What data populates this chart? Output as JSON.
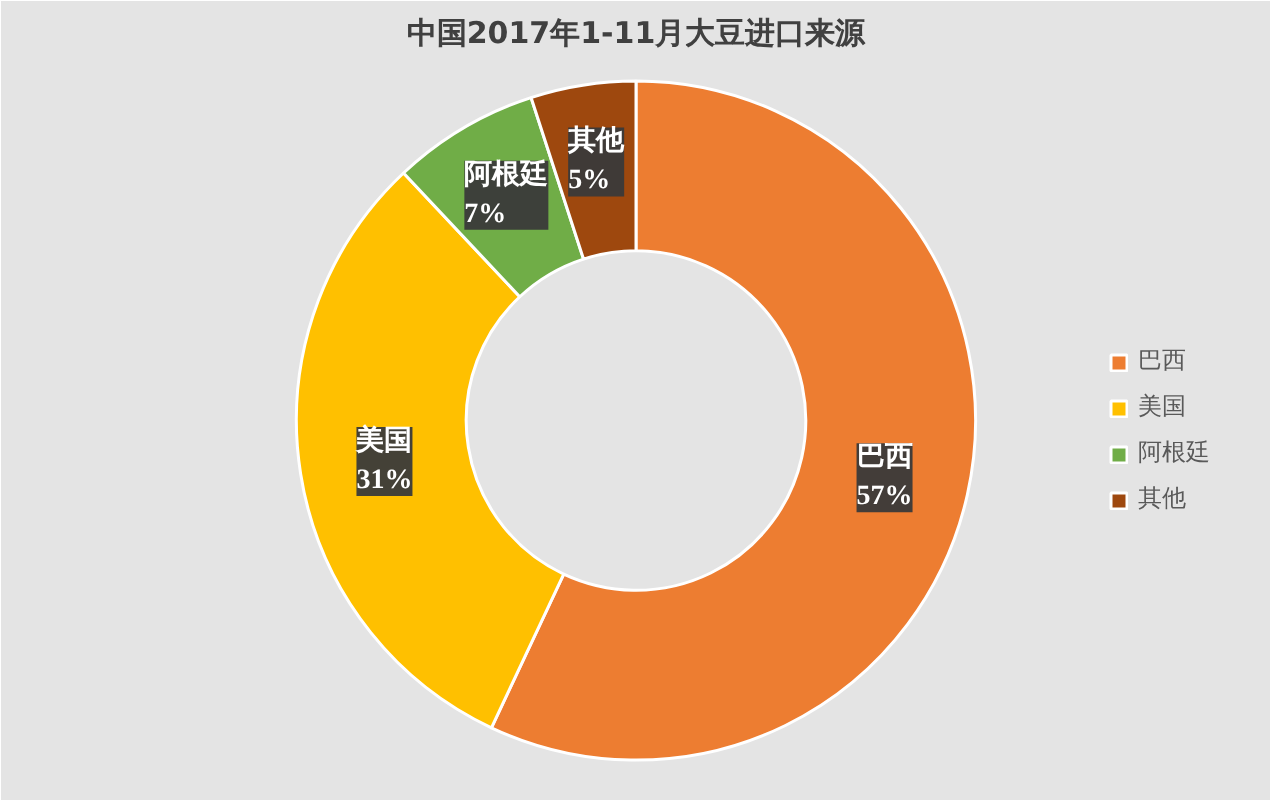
{
  "chart_data": {
    "type": "donut",
    "title": "中国2017年1-11月大豆进口来源",
    "categories": [
      "巴西",
      "美国",
      "阿根廷",
      "其他"
    ],
    "values": [
      57,
      31,
      7,
      5
    ],
    "colors": [
      "#ed7d31",
      "#ffc000",
      "#70ad47",
      "#9e480e"
    ],
    "value_labels": [
      "57%",
      "31%",
      "7%",
      "5%"
    ],
    "legend": "right"
  }
}
